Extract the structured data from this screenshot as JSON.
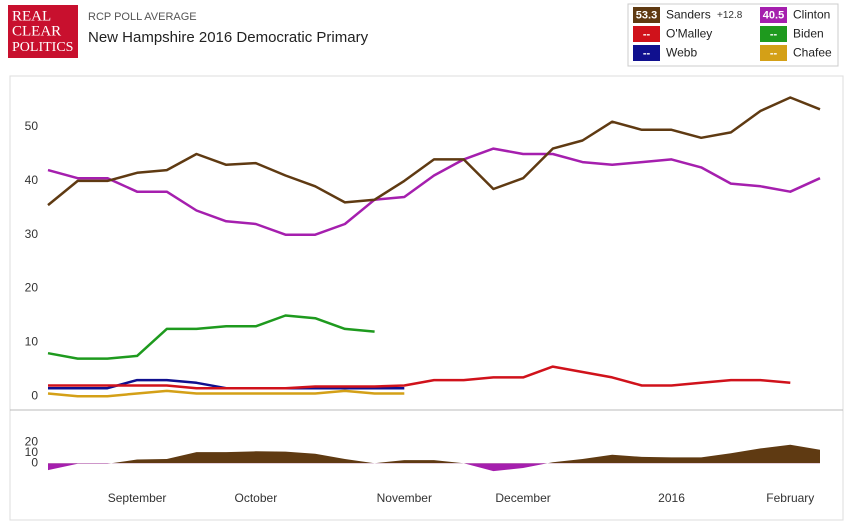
{
  "header": {
    "logo": [
      "REAL",
      "CLEAR",
      "POLITICS"
    ],
    "kicker": "RCP POLL AVERAGE",
    "title": "New Hampshire 2016 Democratic Primary"
  },
  "chart_data": [
    {
      "type": "line",
      "categories": [
        null,
        null,
        null,
        "September",
        null,
        null,
        null,
        "October",
        null,
        null,
        null,
        null,
        "November",
        null,
        null,
        null,
        "December",
        null,
        null,
        null,
        null,
        "2016",
        null,
        null,
        null,
        "February",
        null
      ],
      "ylim": [
        -2,
        58
      ],
      "yticks": [
        0,
        10,
        20,
        30,
        40,
        50
      ],
      "grid": false,
      "series": [
        {
          "name": "Sanders",
          "color": "#5f3a12",
          "latest": 53.3,
          "values": [
            35.5,
            40,
            40,
            41.5,
            42,
            45,
            43,
            43.3,
            41,
            39,
            36,
            36.5,
            40,
            44,
            44,
            38.5,
            40.5,
            46,
            47.5,
            51,
            49.5,
            49.5,
            48,
            49,
            53,
            55.5,
            53.3
          ]
        },
        {
          "name": "Clinton",
          "color": "#a51fae",
          "latest": 40.5,
          "values": [
            42,
            40.5,
            40.5,
            38,
            38,
            34.5,
            32.5,
            32,
            30,
            30,
            32,
            36.5,
            37,
            41,
            44,
            46,
            45,
            45,
            43.5,
            43,
            43.5,
            44,
            42.5,
            39.5,
            39,
            38,
            40.5
          ]
        },
        {
          "name": "O'Malley",
          "color": "#d0121b",
          "latest_label": "--",
          "values": [
            2,
            2,
            2,
            2,
            2,
            1.5,
            1.5,
            1.5,
            1.5,
            1.8,
            1.8,
            1.8,
            2,
            3,
            3,
            3.5,
            3.5,
            5.5,
            4.5,
            3.5,
            2,
            2,
            2.5,
            3,
            3,
            2.5,
            null
          ]
        },
        {
          "name": "Biden",
          "color": "#1e9a1e",
          "latest_label": "--",
          "values": [
            8,
            7,
            7,
            7.5,
            12.5,
            12.5,
            13,
            13,
            15,
            14.5,
            12.5,
            12,
            null,
            null,
            null,
            null,
            null,
            null,
            null,
            null,
            null,
            null,
            null,
            null,
            null,
            null,
            null
          ]
        },
        {
          "name": "Webb",
          "color": "#10108f",
          "latest_label": "--",
          "values": [
            1.5,
            1.5,
            1.5,
            3,
            3,
            2.5,
            1.5,
            1.5,
            1.5,
            1.5,
            1.5,
            1.5,
            1.5,
            null,
            null,
            null,
            null,
            null,
            null,
            null,
            null,
            null,
            null,
            null,
            null,
            null,
            null
          ]
        },
        {
          "name": "Chafee",
          "color": "#d4a017",
          "latest_label": "--",
          "values": [
            0.5,
            0,
            0,
            0.5,
            1,
            0.5,
            0.5,
            0.5,
            0.5,
            0.5,
            1,
            0.5,
            0.5,
            null,
            null,
            null,
            null,
            null,
            null,
            null,
            null,
            null,
            null,
            null,
            null,
            null,
            null
          ]
        }
      ]
    },
    {
      "type": "area",
      "ylim": [
        -14,
        40
      ],
      "yticks": [
        0,
        10,
        20
      ],
      "color": "#5f3a12",
      "negative_color": "#a51fae",
      "latest": 12.8,
      "latest_label": "+12.8",
      "values": [
        -6.5,
        -0.5,
        -0.5,
        3.5,
        4,
        10.5,
        10.5,
        11.3,
        11,
        9,
        4,
        0,
        3,
        3,
        0,
        -7.5,
        -4.5,
        1,
        4,
        8,
        6,
        5.5,
        5.5,
        9.5,
        14,
        17.5,
        12.8
      ]
    }
  ]
}
